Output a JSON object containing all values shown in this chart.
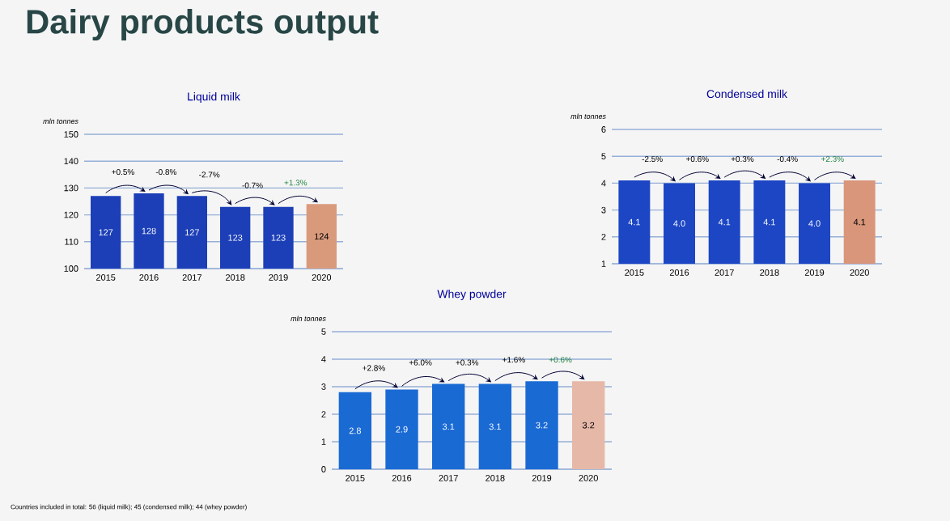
{
  "chart_data": [
    {
      "type": "bar",
      "title": "Liquid milk",
      "ylabel": "mln tonnes",
      "categories": [
        "2015",
        "2016",
        "2017",
        "2018",
        "2019",
        "2020"
      ],
      "values": [
        127,
        128,
        127,
        123,
        123,
        124
      ],
      "colors": [
        "#1c3fb8",
        "#1c3fb8",
        "#1c3fb8",
        "#1c3fb8",
        "#1c3fb8",
        "#d99a7c"
      ],
      "ylim": [
        100,
        150
      ],
      "yticks": [
        100,
        110,
        120,
        130,
        140,
        150
      ],
      "grid": "y",
      "data_labels": true,
      "annotations": [
        "+0.5%",
        "-0.8%",
        "-2.7%",
        "-0.7%",
        "+1.3%",
        "Dairy products output"
      ]
    },
    {
      "type": "bar",
      "title": "Condensed milk",
      "ylabel": "mln tonnes",
      "categories": [
        "2015",
        "2016",
        "2017",
        "2018",
        "2019",
        "2020"
      ],
      "values": [
        4.1,
        4.0,
        4.1,
        4.1,
        4.0,
        4.1
      ],
      "colors": [
        "#1c46c4",
        "#1c46c4",
        "#1c46c4",
        "#1c46c4",
        "#1c46c4",
        "#d9967a"
      ],
      "ylim": [
        1,
        6
      ],
      "yticks": [
        1,
        2,
        3,
        4,
        5,
        6
      ],
      "grid": "y",
      "value_labels": [
        "4.1",
        "4.0",
        "4.1",
        "4.1",
        "4.0",
        "4.1"
      ],
      "annotations": [
        "-2.5%",
        "+0.6%",
        "+0.3%",
        "-0.4%",
        "+2.3%"
      ]
    },
    {
      "type": "bar",
      "title": "Whey powder",
      "ylabel": "mln tonnes",
      "categories": [
        "2015",
        "2016",
        "2017",
        "2018",
        "2019",
        "2020"
      ],
      "values": [
        2.8,
        2.9,
        3.1,
        3.1,
        3.2,
        3.2
      ],
      "colors": [
        "#1a6ad4",
        "#1a6ad4",
        "#1a6ad4",
        "#1a6ad4",
        "#1a6ad4",
        "#e6b8a8"
      ],
      "ylim": [
        0,
        5
      ],
      "yticks": [
        0,
        1,
        2,
        3,
        4,
        5
      ],
      "grid": "y",
      "data_labels": true,
      "annotations": [
        "+2.8%",
        "+6.0%",
        "+0.3%",
        "+1.6%",
        "+0.6%",
        "Countries included in total: 56 (liquid milk); 45 (condensed milk); 44 (whey powder)"
      ]
    }
  ]
}
